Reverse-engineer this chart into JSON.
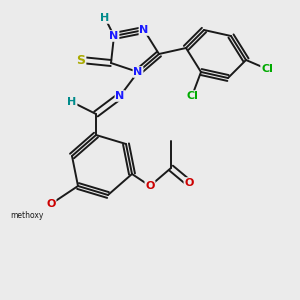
{
  "background_color": "#ebebeb",
  "fig_size": [
    3.0,
    3.0
  ],
  "dpi": 100,
  "bond_color": "#1a1a1a",
  "bond_lw": 1.4,
  "atom_bg": "#ebebeb",
  "colors": {
    "N": "#1a1aff",
    "H": "#008b8b",
    "S": "#aaaa00",
    "Cl": "#00aa00",
    "O": "#cc0000",
    "C": "#1a1a1a"
  }
}
